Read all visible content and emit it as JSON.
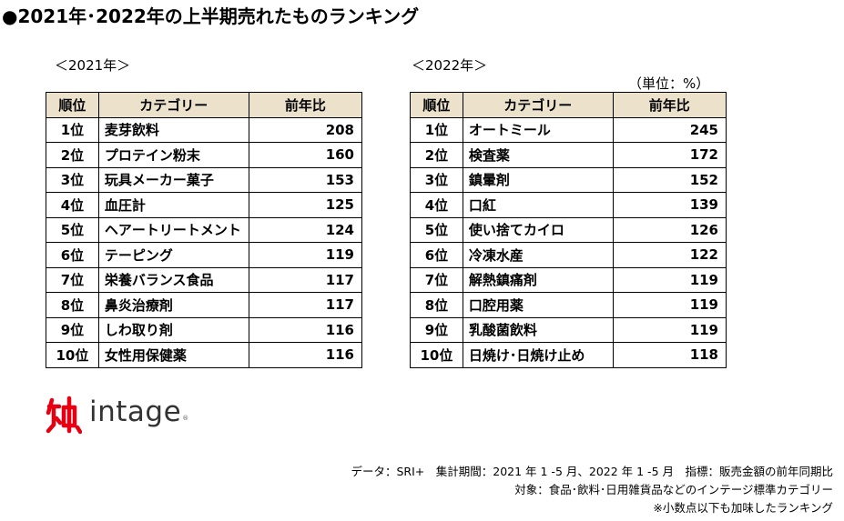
{
  "title": "●2021年･2022年の上半期売れたものランキング",
  "unit_label": "（単位：%）",
  "tables": [
    {
      "caption": "＜2021年＞",
      "headers": [
        "順位",
        "カテゴリー",
        "前年比"
      ],
      "rows": [
        {
          "rank": "1位",
          "category": "麦芽飲料",
          "value": "208"
        },
        {
          "rank": "2位",
          "category": "プロテイン粉末",
          "value": "160"
        },
        {
          "rank": "3位",
          "category": "玩具メーカー菓子",
          "value": "153"
        },
        {
          "rank": "4位",
          "category": "血圧計",
          "value": "125"
        },
        {
          "rank": "5位",
          "category": "ヘアートリートメント",
          "value": "124"
        },
        {
          "rank": "6位",
          "category": "テーピング",
          "value": "119"
        },
        {
          "rank": "7位",
          "category": "栄養バランス食品",
          "value": "117"
        },
        {
          "rank": "8位",
          "category": "鼻炎治療剤",
          "value": "117"
        },
        {
          "rank": "9位",
          "category": "しわ取り剤",
          "value": "116"
        },
        {
          "rank": "10位",
          "category": "女性用保健薬",
          "value": "116"
        }
      ]
    },
    {
      "caption": "＜2022年＞",
      "headers": [
        "順位",
        "カテゴリー",
        "前年比"
      ],
      "rows": [
        {
          "rank": "1位",
          "category": "オートミール",
          "value": "245"
        },
        {
          "rank": "2位",
          "category": "検査薬",
          "value": "172"
        },
        {
          "rank": "3位",
          "category": "鎮暈剤",
          "value": "152"
        },
        {
          "rank": "4位",
          "category": "口紅",
          "value": "139"
        },
        {
          "rank": "5位",
          "category": "使い捨てカイロ",
          "value": "126"
        },
        {
          "rank": "6位",
          "category": "冷凍水産",
          "value": "122"
        },
        {
          "rank": "7位",
          "category": "解熱鎮痛剤",
          "value": "119"
        },
        {
          "rank": "8位",
          "category": "口腔用薬",
          "value": "119"
        },
        {
          "rank": "9位",
          "category": "乳酸菌飲料",
          "value": "119"
        },
        {
          "rank": "10位",
          "category": "日焼け･日焼け止め",
          "value": "118"
        }
      ]
    }
  ],
  "logo": {
    "text": "intage",
    "tm": "®",
    "icon": "intage-kanji-mark-icon",
    "color": "#e60012"
  },
  "notes": [
    "データ：SRI+　集計期間：2021 年 1 -5 月、2022 年 1 -5 月　指標：販売金額の前年同期比",
    "対象：食品･飲料･日用雑貨品などのインテージ標準カテゴリー",
    "※小数点以下も加味したランキング"
  ]
}
